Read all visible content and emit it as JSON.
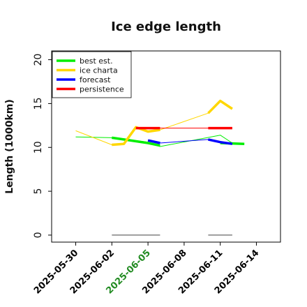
{
  "chart_data": {
    "type": "line",
    "title": "Ice edge length",
    "xlabel": "",
    "ylabel": "Length (1000km)",
    "ylim": [
      -0.8,
      21
    ],
    "xlim": [
      "2025-05-28",
      "2025-06-16"
    ],
    "yticks": [
      "0",
      "5",
      "10",
      "15",
      "20"
    ],
    "xticks": [
      {
        "label": "2025-05-30",
        "color": "#000000"
      },
      {
        "label": "2025-06-02",
        "color": "#000000"
      },
      {
        "label": "2025-06-05",
        "color": "#228b22"
      },
      {
        "label": "2025-06-08",
        "color": "#000000"
      },
      {
        "label": "2025-06-11",
        "color": "#000000"
      },
      {
        "label": "2025-06-14",
        "color": "#000000"
      }
    ],
    "legend": {
      "position": "top-left",
      "entries": [
        {
          "name": "best est.",
          "color": "#00ee00"
        },
        {
          "name": "ice charta",
          "color": "#ffd700"
        },
        {
          "name": "forecast",
          "color": "#0000ff"
        },
        {
          "name": "persistence",
          "color": "#ff0000"
        }
      ]
    },
    "series": [
      {
        "name": "best est.",
        "color": "#00ee00",
        "width": 1,
        "points": [
          [
            "2025-05-30",
            11.2
          ],
          [
            "2025-06-02",
            11.1
          ],
          [
            "2025-06-05",
            10.6
          ],
          [
            "2025-06-06",
            10.1
          ],
          [
            "2025-06-11",
            11.4
          ],
          [
            "2025-06-12",
            10.5
          ]
        ]
      },
      {
        "name": "best est.",
        "color": "#00ee00",
        "width": 3.5,
        "points": [
          [
            "2025-06-02",
            11.1
          ],
          [
            "2025-06-03",
            10.9
          ],
          [
            "2025-06-05",
            10.5
          ],
          [
            "2025-06-06",
            10.2
          ]
        ]
      },
      {
        "name": "best est.",
        "color": "#00ee00",
        "width": 3.5,
        "points": [
          [
            "2025-06-11",
            10.5
          ],
          [
            "2025-06-13",
            10.4
          ]
        ]
      },
      {
        "name": "ice charta",
        "color": "#ffd700",
        "width": 1,
        "points": [
          [
            "2025-05-30",
            11.9
          ],
          [
            "2025-06-02",
            10.3
          ],
          [
            "2025-06-03",
            10.4
          ],
          [
            "2025-06-04",
            12.3
          ],
          [
            "2025-06-05",
            11.8
          ],
          [
            "2025-06-06",
            12.0
          ],
          [
            "2025-06-10",
            13.9
          ],
          [
            "2025-06-11",
            15.3
          ],
          [
            "2025-06-12",
            14.4
          ]
        ]
      },
      {
        "name": "ice charta",
        "color": "#ffd700",
        "width": 3.5,
        "points": [
          [
            "2025-06-02",
            10.3
          ],
          [
            "2025-06-03",
            10.4
          ],
          [
            "2025-06-04",
            12.3
          ],
          [
            "2025-06-05",
            11.8
          ],
          [
            "2025-06-06",
            12.0
          ]
        ]
      },
      {
        "name": "ice charta",
        "color": "#ffd700",
        "width": 3.5,
        "points": [
          [
            "2025-06-10",
            13.9
          ],
          [
            "2025-06-11",
            15.3
          ],
          [
            "2025-06-12",
            14.4
          ]
        ]
      },
      {
        "name": "forecast",
        "color": "#0000ff",
        "width": 1,
        "points": [
          [
            "2025-06-05",
            10.8
          ],
          [
            "2025-06-06",
            10.5
          ],
          [
            "2025-06-10",
            10.9
          ],
          [
            "2025-06-11",
            10.6
          ],
          [
            "2025-06-12",
            10.4
          ]
        ]
      },
      {
        "name": "forecast",
        "color": "#0000ff",
        "width": 3.5,
        "points": [
          [
            "2025-06-05",
            10.8
          ],
          [
            "2025-06-06",
            10.5
          ]
        ]
      },
      {
        "name": "forecast",
        "color": "#0000ff",
        "width": 3.5,
        "points": [
          [
            "2025-06-10",
            10.9
          ],
          [
            "2025-06-11",
            10.6
          ],
          [
            "2025-06-12",
            10.4
          ]
        ]
      },
      {
        "name": "persistence",
        "color": "#ff0000",
        "width": 1,
        "points": [
          [
            "2025-06-04",
            12.2
          ],
          [
            "2025-06-12",
            12.2
          ]
        ]
      },
      {
        "name": "persistence",
        "color": "#ff0000",
        "width": 3.5,
        "points": [
          [
            "2025-06-04",
            12.2
          ],
          [
            "2025-06-06",
            12.2
          ]
        ]
      },
      {
        "name": "persistence",
        "color": "#ff0000",
        "width": 3.5,
        "points": [
          [
            "2025-06-10",
            12.2
          ],
          [
            "2025-06-12",
            12.2
          ]
        ]
      },
      {
        "name": "",
        "color": "#808080",
        "width": 1.5,
        "points": [
          [
            "2025-06-02",
            0
          ],
          [
            "2025-06-06",
            0
          ]
        ]
      },
      {
        "name": "",
        "color": "#808080",
        "width": 1.5,
        "points": [
          [
            "2025-06-10",
            0
          ],
          [
            "2025-06-12",
            0
          ]
        ]
      }
    ]
  }
}
